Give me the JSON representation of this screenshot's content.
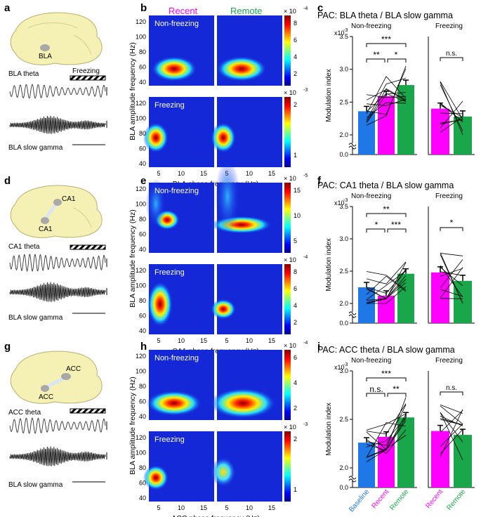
{
  "panels": {
    "a": "a",
    "b": "b",
    "c": "c",
    "d": "d",
    "e": "e",
    "f": "f",
    "g": "g",
    "h": "h",
    "i": "i"
  },
  "brains": [
    {
      "region": "BLA",
      "source": "BLA",
      "theta_label": "BLA theta",
      "gamma_label": "BLA slow gamma",
      "freezing_label": "Freezing"
    },
    {
      "region": "CA1",
      "source": "CA1",
      "theta_label": "CA1 theta",
      "gamma_label": "BLA slow gamma",
      "freezing_label": ""
    },
    {
      "region": "ACC",
      "source": "ACC",
      "theta_label": "ACC theta",
      "gamma_label": "BLA slow gamma",
      "freezing_label": ""
    }
  ],
  "comodulograms": {
    "col_labels": [
      "Recent",
      "Remote"
    ],
    "col_colors": [
      "#ff00ff",
      "#1aa64a"
    ],
    "ylabel": "BLA amplitude frequency (Hz)",
    "state_labels": [
      "Non-freezing",
      "Freezing"
    ],
    "yticks": [
      "120",
      "100",
      "80",
      "60",
      "40"
    ],
    "xticks": [
      "5",
      "10",
      "15"
    ],
    "rows": [
      {
        "xlabel": "BLA phase frequency (Hz)",
        "nf_scale": {
          "exp": "× 10",
          "sup": "-4",
          "ticks": [
            "8",
            "6",
            "4",
            "2"
          ]
        },
        "f_scale": {
          "exp": "× 10",
          "sup": "-3",
          "ticks": [
            "2",
            "1"
          ]
        }
      },
      {
        "xlabel": "CA1 phase frequency (Hz)",
        "nf_scale": {
          "exp": "× 10",
          "sup": "-5",
          "ticks": [
            "15",
            "10",
            "5"
          ]
        },
        "f_scale": {
          "exp": "× 10",
          "sup": "-4",
          "ticks": [
            "8",
            "6",
            "4",
            "2"
          ]
        }
      },
      {
        "xlabel": "ACC phase frequency (Hz)",
        "nf_scale": {
          "exp": "× 10",
          "sup": "-4",
          "ticks": [
            "6",
            "4",
            "2"
          ]
        },
        "f_scale": {
          "exp": "× 10",
          "sup": "-3",
          "ticks": [
            "2",
            "1"
          ]
        }
      }
    ]
  },
  "chart_data": [
    {
      "type": "bar",
      "title": "PAC: BLA theta / BLA slow gamma",
      "ylabel": "Modulation index",
      "yscale_label": "x10",
      "yscale_sup": "-3",
      "ylim": [
        0,
        3.5
      ],
      "yticks": [
        "0.0",
        "2.0",
        "2.5",
        "3.0",
        "3.5"
      ],
      "groups": [
        "Non-freezing",
        "Freezing"
      ],
      "categories": [
        "Baseline",
        "Recent",
        "Remote"
      ],
      "nonfreezing_values": [
        2.36,
        2.59,
        2.76
      ],
      "freezing_values": [
        2.4,
        2.28
      ],
      "significance_nonfreezing": [
        "***",
        "**",
        "*"
      ],
      "significance_freezing": "n.s."
    },
    {
      "type": "bar",
      "title": "PAC: CA1 theta / BLA slow gamma",
      "ylabel": "Modulation index",
      "yscale_label": "x10",
      "yscale_sup": "-3",
      "ylim": [
        0,
        3.5
      ],
      "yticks": [
        "0.0",
        "2.0",
        "2.5",
        "3.0",
        "3.5"
      ],
      "groups": [
        "Non-freezing",
        "Freezing"
      ],
      "categories": [
        "Baseline",
        "Recent",
        "Remote"
      ],
      "nonfreezing_values": [
        2.25,
        2.12,
        2.46
      ],
      "freezing_values": [
        2.48,
        2.35
      ],
      "significance_nonfreezing": [
        "**",
        "*",
        "***"
      ],
      "significance_freezing": "*"
    },
    {
      "type": "bar",
      "title": "PAC: ACC theta / BLA slow gamma",
      "ylabel": "Modulation index",
      "yscale_label": "x10",
      "yscale_sup": "-3",
      "ylim": [
        0,
        3.0
      ],
      "yticks": [
        "0.0",
        "2.0",
        "2.5",
        "3.0"
      ],
      "groups": [
        "Non-freezing",
        "Freezing"
      ],
      "categories": [
        "Baseline",
        "Recent",
        "Remote"
      ],
      "nonfreezing_values": [
        2.26,
        2.32,
        2.52
      ],
      "freezing_values": [
        2.38,
        2.34
      ],
      "significance_nonfreezing": [
        "***",
        "n.s.",
        "**"
      ],
      "significance_freezing": "n.s."
    }
  ],
  "x_category_labels": [
    "Baseline",
    "Recent",
    "Remote",
    "Recent",
    "Remote"
  ],
  "colors": {
    "baseline": "#1f78e6",
    "recent": "#ff00ff",
    "remote": "#1aa64a"
  }
}
